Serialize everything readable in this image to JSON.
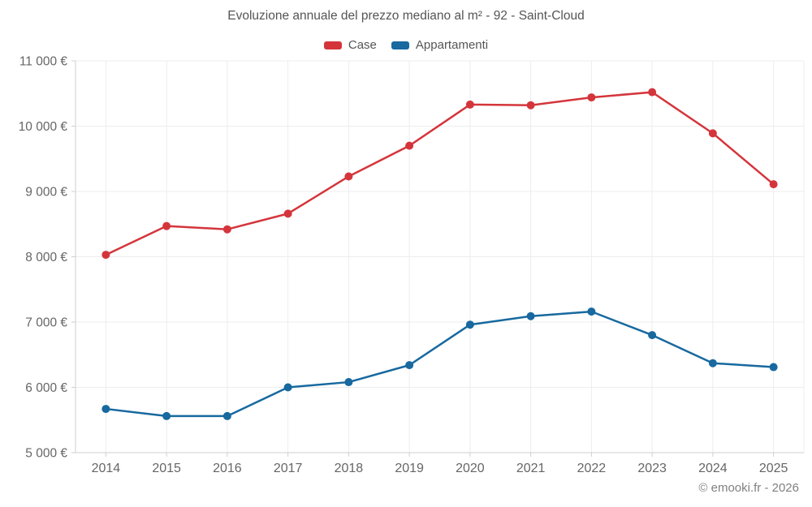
{
  "chart_data": {
    "type": "line",
    "title": "Evoluzione annuale del prezzo mediano al m² - 92 - Saint-Cloud",
    "xlabel": "",
    "ylabel": "",
    "categories": [
      "2014",
      "2015",
      "2016",
      "2017",
      "2018",
      "2019",
      "2020",
      "2021",
      "2022",
      "2023",
      "2024",
      "2025"
    ],
    "series": [
      {
        "name": "Case",
        "color": "#d4353b",
        "values": [
          8030,
          8470,
          8420,
          8660,
          9230,
          9700,
          10330,
          10320,
          10440,
          10520,
          9890,
          9110
        ]
      },
      {
        "name": "Appartamenti",
        "color": "#17699f",
        "values": [
          5670,
          5560,
          5560,
          6000,
          6080,
          6340,
          6960,
          7090,
          7160,
          6800,
          6370,
          6310
        ]
      }
    ],
    "ylim": [
      5000,
      11000
    ],
    "y_ticks": [
      {
        "value": 5000,
        "label": "5 000 €"
      },
      {
        "value": 6000,
        "label": "6 000 €"
      },
      {
        "value": 7000,
        "label": "7 000 €"
      },
      {
        "value": 8000,
        "label": "8 000 €"
      },
      {
        "value": 9000,
        "label": "9 000 €"
      },
      {
        "value": 10000,
        "label": "10 000 €"
      },
      {
        "value": 11000,
        "label": "11 000 €"
      }
    ],
    "grid": true,
    "legend_position": "top",
    "marker": "circle"
  },
  "footer": {
    "credit": "© emooki.fr - 2026"
  }
}
